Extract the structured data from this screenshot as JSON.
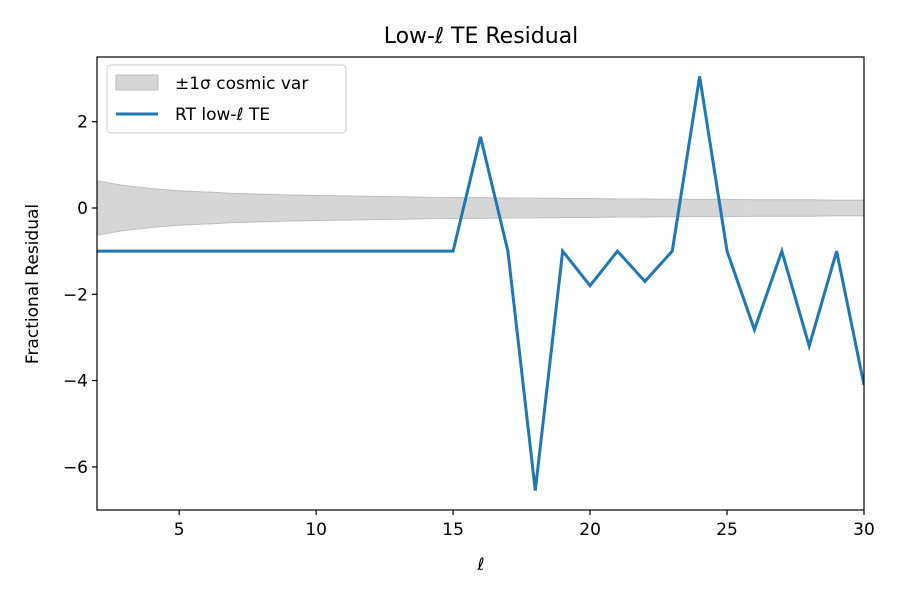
{
  "chart_data": {
    "type": "line",
    "title": "Low-ℓ TE Residual",
    "xlabel": "ℓ",
    "ylabel": "Fractional Residual",
    "xlim": [
      2,
      30
    ],
    "ylim": [
      -7,
      3.5
    ],
    "xticks": [
      5,
      10,
      15,
      20,
      25,
      30
    ],
    "xtick_labels": [
      "5",
      "10",
      "15",
      "20",
      "25",
      "30"
    ],
    "yticks": [
      -6,
      -4,
      -2,
      0,
      2
    ],
    "ytick_labels": [
      "−6",
      "−4",
      "−2",
      "0",
      "2"
    ],
    "grid": false,
    "legend_position": "top-left",
    "band": {
      "name": "±1σ cosmic var",
      "color": "#d6d6d6",
      "edge_color": "#bdbdbd",
      "x": [
        2,
        3,
        4,
        5,
        6,
        7,
        8,
        9,
        10,
        11,
        12,
        13,
        14,
        15,
        16,
        17,
        18,
        19,
        20,
        21,
        22,
        23,
        24,
        25,
        26,
        27,
        28,
        29,
        30
      ],
      "upper": [
        0.63,
        0.52,
        0.45,
        0.4,
        0.37,
        0.34,
        0.32,
        0.3,
        0.29,
        0.28,
        0.27,
        0.26,
        0.25,
        0.24,
        0.24,
        0.23,
        0.23,
        0.22,
        0.22,
        0.21,
        0.21,
        0.2,
        0.2,
        0.2,
        0.19,
        0.19,
        0.19,
        0.18,
        0.18
      ],
      "lower": [
        -0.63,
        -0.52,
        -0.45,
        -0.4,
        -0.37,
        -0.34,
        -0.32,
        -0.3,
        -0.29,
        -0.28,
        -0.27,
        -0.26,
        -0.25,
        -0.24,
        -0.24,
        -0.23,
        -0.23,
        -0.22,
        -0.22,
        -0.21,
        -0.21,
        -0.2,
        -0.2,
        -0.2,
        -0.19,
        -0.19,
        -0.19,
        -0.18,
        -0.18
      ]
    },
    "series": [
      {
        "name": "RT low-ℓ TE",
        "color": "#1f77b4",
        "x": [
          2,
          3,
          4,
          5,
          6,
          7,
          8,
          9,
          10,
          11,
          12,
          13,
          14,
          15,
          16,
          17,
          18,
          19,
          20,
          21,
          22,
          23,
          24,
          25,
          26,
          27,
          28,
          29,
          30
        ],
        "y": [
          -1.0,
          -1.0,
          -1.0,
          -1.0,
          -1.0,
          -1.0,
          -1.0,
          -1.0,
          -1.0,
          -1.0,
          -1.0,
          -1.0,
          -1.0,
          -1.0,
          1.65,
          -1.0,
          -6.55,
          -1.0,
          -1.8,
          -1.0,
          -1.7,
          -1.0,
          3.05,
          -1.0,
          -2.82,
          -1.0,
          -3.2,
          -1.0,
          -4.1
        ]
      }
    ]
  }
}
